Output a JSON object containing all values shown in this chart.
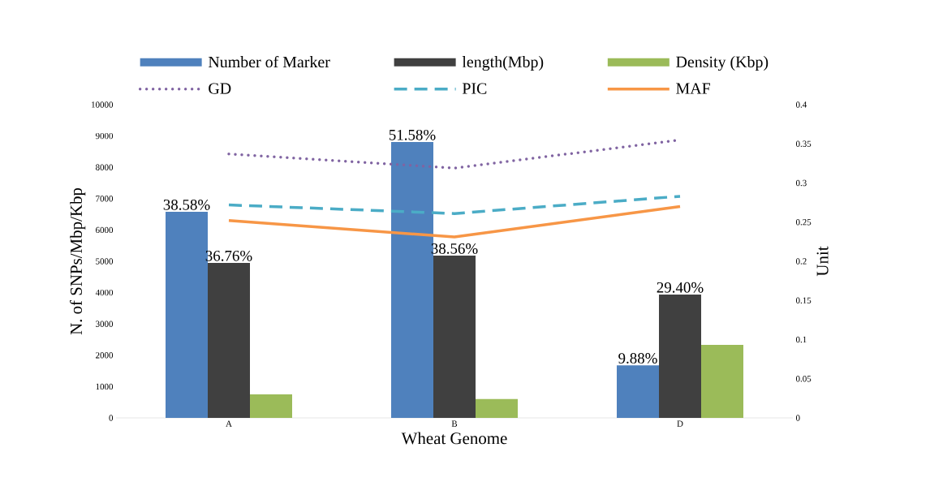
{
  "chart_data": {
    "type": "bar",
    "xlabel": "Wheat Genome",
    "ylabel": "N. of SNPs/Mbp/Kbp",
    "y2label": "Unit",
    "categories": [
      "A",
      "B",
      "D"
    ],
    "series": [
      {
        "name": "Number of Marker",
        "color": "#4f81bd",
        "values": [
          6580,
          8810,
          1680
        ]
      },
      {
        "name": "length(Mbp)",
        "color": "#404040",
        "values": [
          4950,
          5180,
          3940
        ]
      },
      {
        "name": "Density (Kbp)",
        "color": "#9bbb59",
        "values": [
          750,
          600,
          2330
        ]
      },
      {
        "name": "GD",
        "type": "line",
        "axis": "y2",
        "color": "#8064a2",
        "line_style": "dotted",
        "values": [
          0.337,
          0.319,
          0.355
        ]
      },
      {
        "name": "PIC",
        "type": "line",
        "axis": "y2",
        "color": "#4bacc6",
        "line_style": "dashed",
        "values": [
          0.272,
          0.261,
          0.283
        ]
      },
      {
        "name": "MAF",
        "type": "line",
        "axis": "y2",
        "color": "#f79646",
        "line_style": "solid",
        "values": [
          0.252,
          0.231,
          0.27
        ]
      }
    ],
    "ylim": [
      0,
      10000
    ],
    "yticks": [
      0,
      1000,
      2000,
      3000,
      4000,
      5000,
      6000,
      7000,
      8000,
      9000,
      10000
    ],
    "y2lim": [
      0,
      0.4
    ],
    "y2ticks": [
      0,
      0.05,
      0.1,
      0.15,
      0.2,
      0.25,
      0.3,
      0.35,
      0.4
    ],
    "annotations": [
      "38.58%",
      "51.58%",
      "9.88%",
      "36.76%",
      "38.56%",
      "29.40%"
    ],
    "legend": "top",
    "grid": false
  }
}
